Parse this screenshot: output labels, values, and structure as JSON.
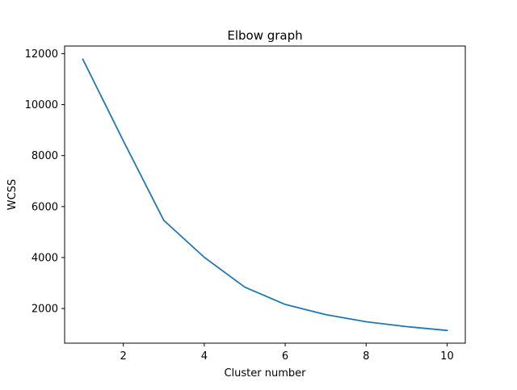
{
  "chart_data": {
    "type": "line",
    "title": "Elbow graph",
    "xlabel": "Cluster number",
    "ylabel": "WCSS",
    "x": [
      1,
      2,
      3,
      4,
      5,
      6,
      7,
      8,
      9,
      10
    ],
    "series": [
      {
        "values": [
          11780,
          8580,
          5460,
          4010,
          2840,
          2160,
          1760,
          1480,
          1290,
          1140
        ],
        "color": "#1f77b4"
      }
    ],
    "xlim": [
      0.55,
      10.45
    ],
    "ylim": [
      640,
      12300
    ],
    "xticks": [
      2,
      4,
      6,
      8,
      10
    ],
    "xtick_labels": [
      "2",
      "4",
      "6",
      "8",
      "10"
    ],
    "yticks": [
      2000,
      4000,
      6000,
      8000,
      10000,
      12000
    ],
    "ytick_labels": [
      "2000",
      "4000",
      "6000",
      "8000",
      "10000",
      "12000"
    ],
    "grid": false,
    "legend": "none"
  }
}
